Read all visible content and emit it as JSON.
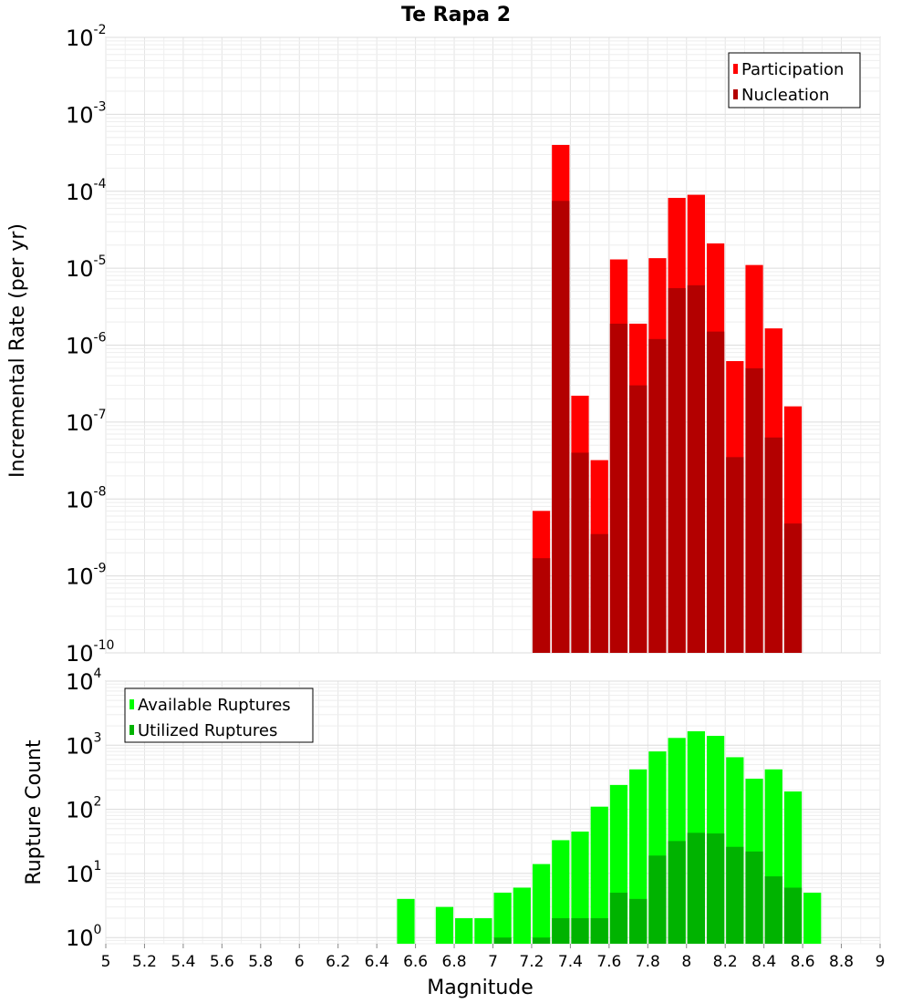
{
  "chart_data": [
    {
      "type": "bar",
      "title": "Te Rapa 2",
      "xlabel": "Magnitude",
      "ylabel": "Incremental Rate (per yr)",
      "yscale": "log",
      "ylim": [
        1e-10,
        0.01
      ],
      "xlim": [
        5,
        9
      ],
      "bar_width": 0.1,
      "grid": true,
      "legend_position": "top-right",
      "series": [
        {
          "name": "Participation",
          "color": "#ff0000",
          "x": [
            7.25,
            7.35,
            7.45,
            7.55,
            7.65,
            7.75,
            7.85,
            7.95,
            8.05,
            8.15,
            8.25,
            8.35,
            8.45,
            8.55
          ],
          "values": [
            7e-09,
            0.0004,
            2.2e-07,
            3.2e-08,
            1.3e-05,
            1.9e-06,
            1.35e-05,
            8.2e-05,
            9e-05,
            2.1e-05,
            6.2e-07,
            1.1e-05,
            1.65e-06,
            1.6e-07
          ]
        },
        {
          "name": "Nucleation",
          "color": "#b30000",
          "x": [
            7.25,
            7.35,
            7.45,
            7.55,
            7.65,
            7.75,
            7.85,
            7.95,
            8.05,
            8.15,
            8.25,
            8.35,
            8.45,
            8.55
          ],
          "values": [
            1.7e-09,
            7.5e-05,
            4e-08,
            3.5e-09,
            1.9e-06,
            3e-07,
            1.2e-06,
            5.5e-06,
            6e-06,
            1.5e-06,
            3.5e-08,
            5e-07,
            6.3e-08,
            4.8e-09
          ]
        }
      ]
    },
    {
      "type": "bar",
      "title": "",
      "xlabel": "Magnitude",
      "ylabel": "Rupture Count",
      "yscale": "log",
      "ylim": [
        0.8,
        10000
      ],
      "xlim": [
        5,
        9
      ],
      "bar_width": 0.1,
      "grid": true,
      "legend_position": "top-left",
      "series": [
        {
          "name": "Available Ruptures",
          "color": "#00ff00",
          "x": [
            6.55,
            6.75,
            6.85,
            6.95,
            7.05,
            7.15,
            7.25,
            7.35,
            7.45,
            7.55,
            7.65,
            7.75,
            7.85,
            7.95,
            8.05,
            8.15,
            8.25,
            8.35,
            8.45,
            8.55,
            8.65
          ],
          "values": [
            4,
            3,
            2,
            2,
            5,
            6,
            14,
            33,
            45,
            110,
            240,
            420,
            800,
            1300,
            1650,
            1400,
            650,
            300,
            420,
            190,
            5
          ]
        },
        {
          "name": "Utilized Ruptures",
          "color": "#00b300",
          "x": [
            7.05,
            7.25,
            7.35,
            7.45,
            7.55,
            7.65,
            7.75,
            7.85,
            7.95,
            8.05,
            8.15,
            8.25,
            8.35,
            8.45,
            8.55
          ],
          "values": [
            1,
            1,
            2,
            2,
            2,
            5,
            4,
            19,
            32,
            43,
            42,
            26,
            22,
            9,
            6
          ]
        }
      ]
    }
  ],
  "x_ticks": [
    "5",
    "5.2",
    "5.4",
    "5.6",
    "5.8",
    "6",
    "6.2",
    "6.4",
    "6.6",
    "6.8",
    "7",
    "7.2",
    "7.4",
    "7.6",
    "7.8",
    "8",
    "8.2",
    "8.4",
    "8.6",
    "8.8",
    "9"
  ],
  "top_y_ticks": [
    {
      "base": "10",
      "exp": "-10"
    },
    {
      "base": "10",
      "exp": "-9"
    },
    {
      "base": "10",
      "exp": "-8"
    },
    {
      "base": "10",
      "exp": "-7"
    },
    {
      "base": "10",
      "exp": "-6"
    },
    {
      "base": "10",
      "exp": "-5"
    },
    {
      "base": "10",
      "exp": "-4"
    },
    {
      "base": "10",
      "exp": "-3"
    },
    {
      "base": "10",
      "exp": "-2"
    }
  ],
  "bottom_y_ticks": [
    {
      "base": "10",
      "exp": "0"
    },
    {
      "base": "10",
      "exp": "1"
    },
    {
      "base": "10",
      "exp": "2"
    },
    {
      "base": "10",
      "exp": "3"
    },
    {
      "base": "10",
      "exp": "4"
    }
  ]
}
